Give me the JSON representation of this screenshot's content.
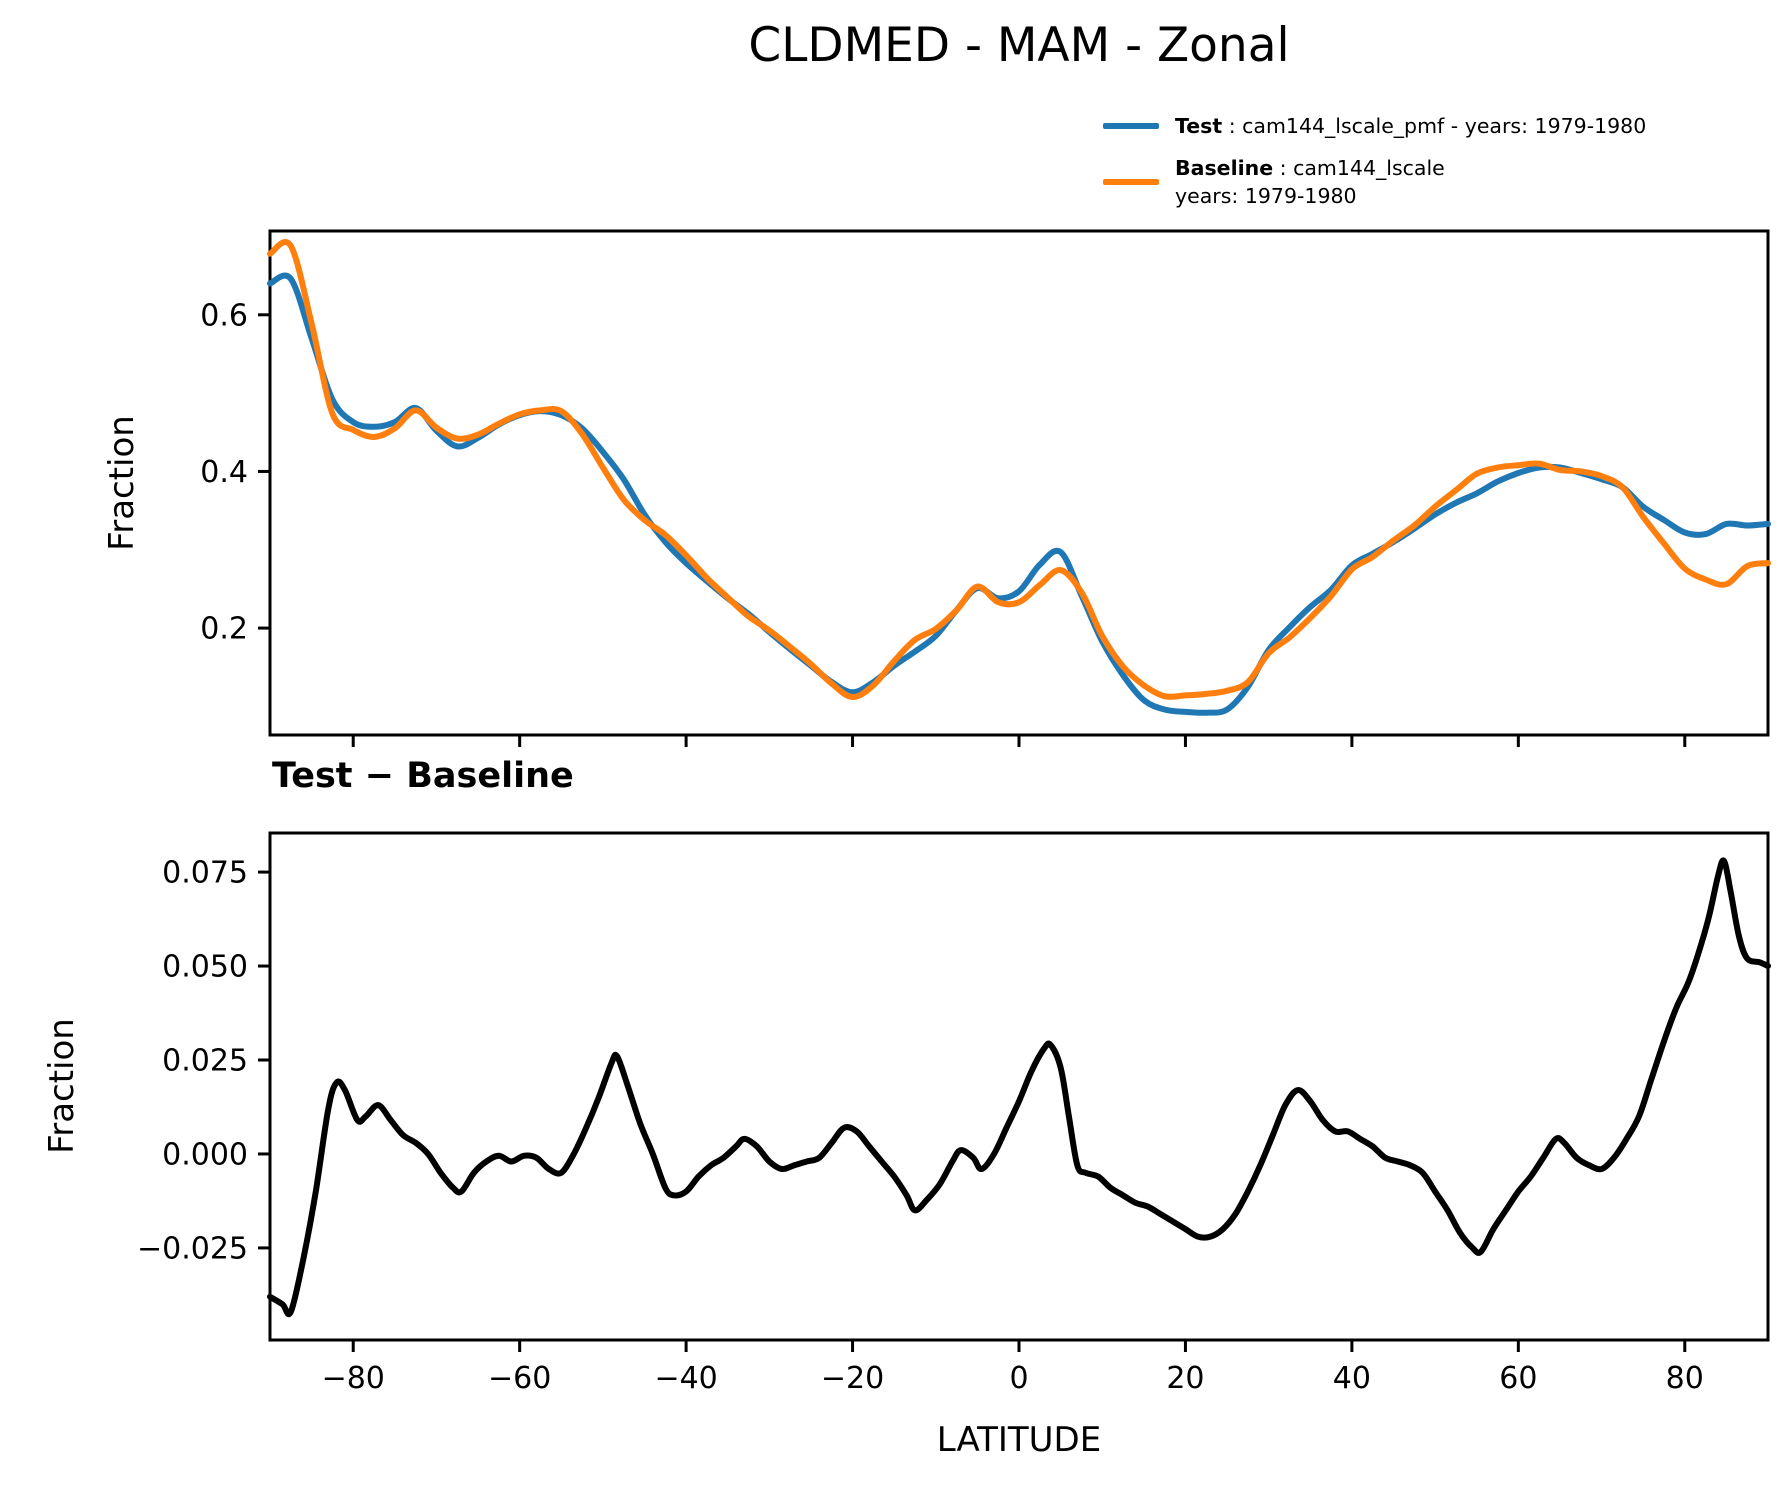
{
  "title": "CLDMED - MAM - Zonal",
  "legend": {
    "test": {
      "label": "Test",
      "text": " : cam144_lscale_pmf - years: 1979-1980",
      "color": "#1f77b4"
    },
    "baseline": {
      "label": "Baseline",
      "text": " : cam144_lscale",
      "text2": "years: 1979-1980",
      "color": "#ff7f0e"
    }
  },
  "chart_data": {
    "type": "line",
    "title": "CLDMED - MAM - Zonal",
    "xlabel": "LATITUDE",
    "legend_position": "upper right above axes",
    "grid": false,
    "panels": [
      {
        "name": "zonal-mean",
        "ylabel": "Fraction",
        "xlim": [
          -90,
          90
        ],
        "ylim": [
          0.0635,
          0.707
        ],
        "xticks": [
          -80,
          -60,
          -40,
          -20,
          0,
          20,
          40,
          60,
          80
        ],
        "xtick_labels": [
          "",
          "",
          "",
          "",
          "",
          "",
          "",
          "",
          ""
        ],
        "yticks": [
          0.2,
          0.4,
          0.6
        ],
        "ytick_labels": [
          "0.2",
          "0.4",
          "0.6"
        ],
        "x": [
          -90,
          -87.5,
          -85,
          -82.5,
          -80,
          -77.5,
          -75,
          -72.5,
          -70,
          -67.5,
          -65,
          -62.5,
          -60,
          -57.5,
          -55,
          -52.5,
          -50,
          -47.5,
          -45,
          -42.5,
          -40,
          -37.5,
          -35,
          -32.5,
          -30,
          -27.5,
          -25,
          -22.5,
          -20,
          -17.5,
          -15,
          -12.5,
          -10,
          -7.5,
          -5,
          -2.5,
          0,
          2.5,
          5,
          7.5,
          10,
          12.5,
          15,
          17.5,
          20,
          22.5,
          25,
          27.5,
          30,
          32.5,
          35,
          37.5,
          40,
          42.5,
          45,
          47.5,
          50,
          52.5,
          55,
          57.5,
          60,
          62.5,
          65,
          67.5,
          70,
          72.5,
          75,
          77.5,
          80,
          82.5,
          85,
          87.5,
          90
        ],
        "series": [
          {
            "name": "Test",
            "color": "#1f77b4",
            "values": [
              0.64,
              0.646,
              0.57,
              0.492,
              0.463,
              0.457,
              0.463,
              0.481,
              0.452,
              0.432,
              0.443,
              0.46,
              0.472,
              0.477,
              0.472,
              0.455,
              0.425,
              0.39,
              0.345,
              0.31,
              0.283,
              0.26,
              0.238,
              0.218,
              0.195,
              0.173,
              0.152,
              0.131,
              0.118,
              0.131,
              0.152,
              0.17,
              0.19,
              0.223,
              0.251,
              0.238,
              0.247,
              0.281,
              0.297,
              0.242,
              0.183,
              0.14,
              0.108,
              0.096,
              0.093,
              0.092,
              0.096,
              0.125,
              0.172,
              0.201,
              0.227,
              0.249,
              0.28,
              0.295,
              0.31,
              0.327,
              0.345,
              0.36,
              0.372,
              0.387,
              0.398,
              0.405,
              0.405,
              0.398,
              0.39,
              0.38,
              0.355,
              0.338,
              0.322,
              0.32,
              0.333,
              0.331,
              0.333
            ]
          },
          {
            "name": "Baseline",
            "color": "#ff7f0e",
            "values": [
              0.678,
              0.688,
              0.589,
              0.474,
              0.453,
              0.444,
              0.455,
              0.478,
              0.456,
              0.442,
              0.447,
              0.461,
              0.473,
              0.478,
              0.477,
              0.448,
              0.405,
              0.364,
              0.338,
              0.319,
              0.293,
              0.264,
              0.239,
              0.215,
              0.197,
              0.176,
              0.154,
              0.129,
              0.112,
              0.127,
              0.158,
              0.185,
              0.199,
              0.223,
              0.253,
              0.233,
              0.233,
              0.255,
              0.274,
              0.246,
              0.19,
              0.151,
              0.127,
              0.113,
              0.114,
              0.116,
              0.12,
              0.131,
              0.168,
              0.188,
              0.213,
              0.241,
              0.275,
              0.291,
              0.312,
              0.331,
              0.355,
              0.376,
              0.397,
              0.405,
              0.408,
              0.41,
              0.402,
              0.4,
              0.394,
              0.38,
              0.342,
              0.308,
              0.276,
              0.262,
              0.256,
              0.279,
              0.283
            ]
          }
        ]
      },
      {
        "name": "difference",
        "title": "Test − Baseline",
        "ylabel": "Fraction",
        "xlim": [
          -90,
          90
        ],
        "ylim": [
          -0.0495,
          0.0854
        ],
        "xticks": [
          -80,
          -60,
          -40,
          -20,
          0,
          20,
          40,
          60,
          80
        ],
        "xtick_labels": [
          "−80",
          "−60",
          "−40",
          "−20",
          "0",
          "20",
          "40",
          "60",
          "80"
        ],
        "yticks": [
          -0.025,
          0.0,
          0.025,
          0.05,
          0.075
        ],
        "ytick_labels": [
          "−0.025",
          "0.000",
          "0.025",
          "0.050",
          "0.075"
        ],
        "series": [
          {
            "name": "Test − Baseline",
            "color": "#000000",
            "x": [
              -90,
              -88.5,
              -87.5,
              -86,
              -84.5,
              -83,
              -82,
              -81,
              -79.5,
              -78.5,
              -77,
              -75.5,
              -74,
              -72.5,
              -71,
              -69.5,
              -68,
              -67,
              -65.5,
              -64,
              -62.5,
              -61,
              -59.5,
              -58,
              -56.5,
              -55,
              -53.5,
              -52,
              -50.5,
              -49,
              -48.3,
              -47,
              -45.5,
              -44,
              -42.5,
              -41.5,
              -40,
              -38.5,
              -37,
              -35.5,
              -34,
              -33,
              -31.5,
              -30,
              -28.5,
              -27,
              -25.5,
              -24,
              -22.5,
              -21,
              -19.5,
              -18,
              -16.5,
              -15,
              -13.5,
              -12.5,
              -11,
              -9.5,
              -8,
              -7,
              -5.5,
              -4.5,
              -3,
              -1.5,
              0,
              1.5,
              3,
              3.8,
              5,
              6,
              7,
              8,
              9.5,
              11,
              12.5,
              14,
              15.5,
              17,
              18.5,
              20,
              21.5,
              23,
              24.5,
              26,
              27.5,
              29,
              30.5,
              32,
              33.5,
              35,
              36.5,
              38,
              39.5,
              41,
              42.5,
              44,
              45.5,
              47,
              48.5,
              50,
              51.5,
              53,
              54.5,
              55.5,
              57,
              58.5,
              60,
              61.5,
              63,
              64.5,
              65.5,
              67,
              68.5,
              70,
              71.5,
              73,
              74.5,
              76,
              77.5,
              79,
              80.5,
              82,
              83,
              84,
              84.7,
              85.5,
              86.5,
              87.5,
              89,
              90
            ],
            "values": [
              -0.038,
              -0.04,
              -0.042,
              -0.028,
              -0.01,
              0.012,
              0.019,
              0.017,
              0.009,
              0.01,
              0.013,
              0.009,
              0.005,
              0.003,
              0.0,
              -0.005,
              -0.009,
              -0.01,
              -0.005,
              -0.002,
              -0.0005,
              -0.002,
              -0.0005,
              -0.001,
              -0.004,
              -0.005,
              0.0,
              0.007,
              0.015,
              0.024,
              0.026,
              0.018,
              0.008,
              0.0,
              -0.009,
              -0.011,
              -0.01,
              -0.006,
              -0.003,
              -0.001,
              0.002,
              0.004,
              0.002,
              -0.002,
              -0.004,
              -0.003,
              -0.002,
              -0.001,
              0.003,
              0.007,
              0.006,
              0.002,
              -0.002,
              -0.006,
              -0.011,
              -0.015,
              -0.012,
              -0.008,
              -0.002,
              0.001,
              -0.001,
              -0.004,
              0.0,
              0.007,
              0.014,
              0.022,
              0.028,
              0.029,
              0.023,
              0.01,
              -0.003,
              -0.005,
              -0.006,
              -0.009,
              -0.011,
              -0.013,
              -0.014,
              -0.016,
              -0.018,
              -0.02,
              -0.022,
              -0.022,
              -0.02,
              -0.016,
              -0.01,
              -0.003,
              0.005,
              0.013,
              0.017,
              0.014,
              0.009,
              0.006,
              0.006,
              0.004,
              0.002,
              -0.001,
              -0.002,
              -0.003,
              -0.005,
              -0.01,
              -0.015,
              -0.021,
              -0.025,
              -0.026,
              -0.02,
              -0.015,
              -0.01,
              -0.006,
              -0.001,
              0.004,
              0.003,
              -0.001,
              -0.003,
              -0.004,
              -0.001,
              0.004,
              0.01,
              0.02,
              0.03,
              0.039,
              0.046,
              0.056,
              0.064,
              0.074,
              0.078,
              0.07,
              0.058,
              0.052,
              0.051,
              0.05
            ]
          }
        ]
      }
    ]
  }
}
